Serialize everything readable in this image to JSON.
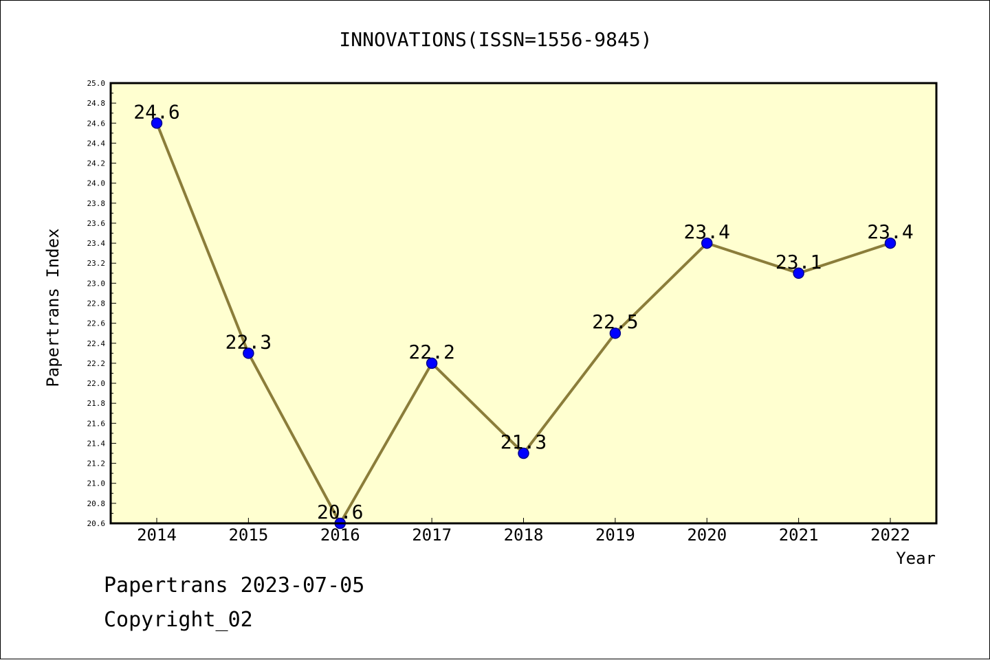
{
  "chart_data": {
    "type": "line",
    "title": "INNOVATIONS(ISSN=1556-9845)",
    "xlabel": "Year",
    "ylabel": "Papertrans Index",
    "categories": [
      "2014",
      "2015",
      "2016",
      "2017",
      "2018",
      "2019",
      "2020",
      "2021",
      "2022"
    ],
    "values": [
      24.6,
      22.3,
      20.6,
      22.2,
      21.3,
      22.5,
      23.4,
      23.1,
      23.4
    ],
    "data_labels": [
      "24.6",
      "22.3",
      "20.6",
      "22.2",
      "21.3",
      "22.5",
      "23.4",
      "23.1",
      "23.4"
    ],
    "ylim": [
      20.6,
      25.0
    ],
    "yticks": [
      "20.6",
      "20.8",
      "21.0",
      "21.2",
      "21.4",
      "21.6",
      "21.8",
      "22.0",
      "22.2",
      "22.4",
      "22.6",
      "22.8",
      "23.0",
      "23.2",
      "23.4",
      "23.6",
      "23.8",
      "24.0",
      "24.2",
      "24.4",
      "24.6",
      "24.8",
      "25.0"
    ],
    "grid": false,
    "colors": {
      "plot_background": "#ffffd0",
      "line": "#8b7d3a",
      "marker": "#0000ff",
      "marker_edge": "#00008b"
    }
  },
  "footer": {
    "line1": "Papertrans 2023-07-05",
    "line2": "Copyright_02"
  }
}
